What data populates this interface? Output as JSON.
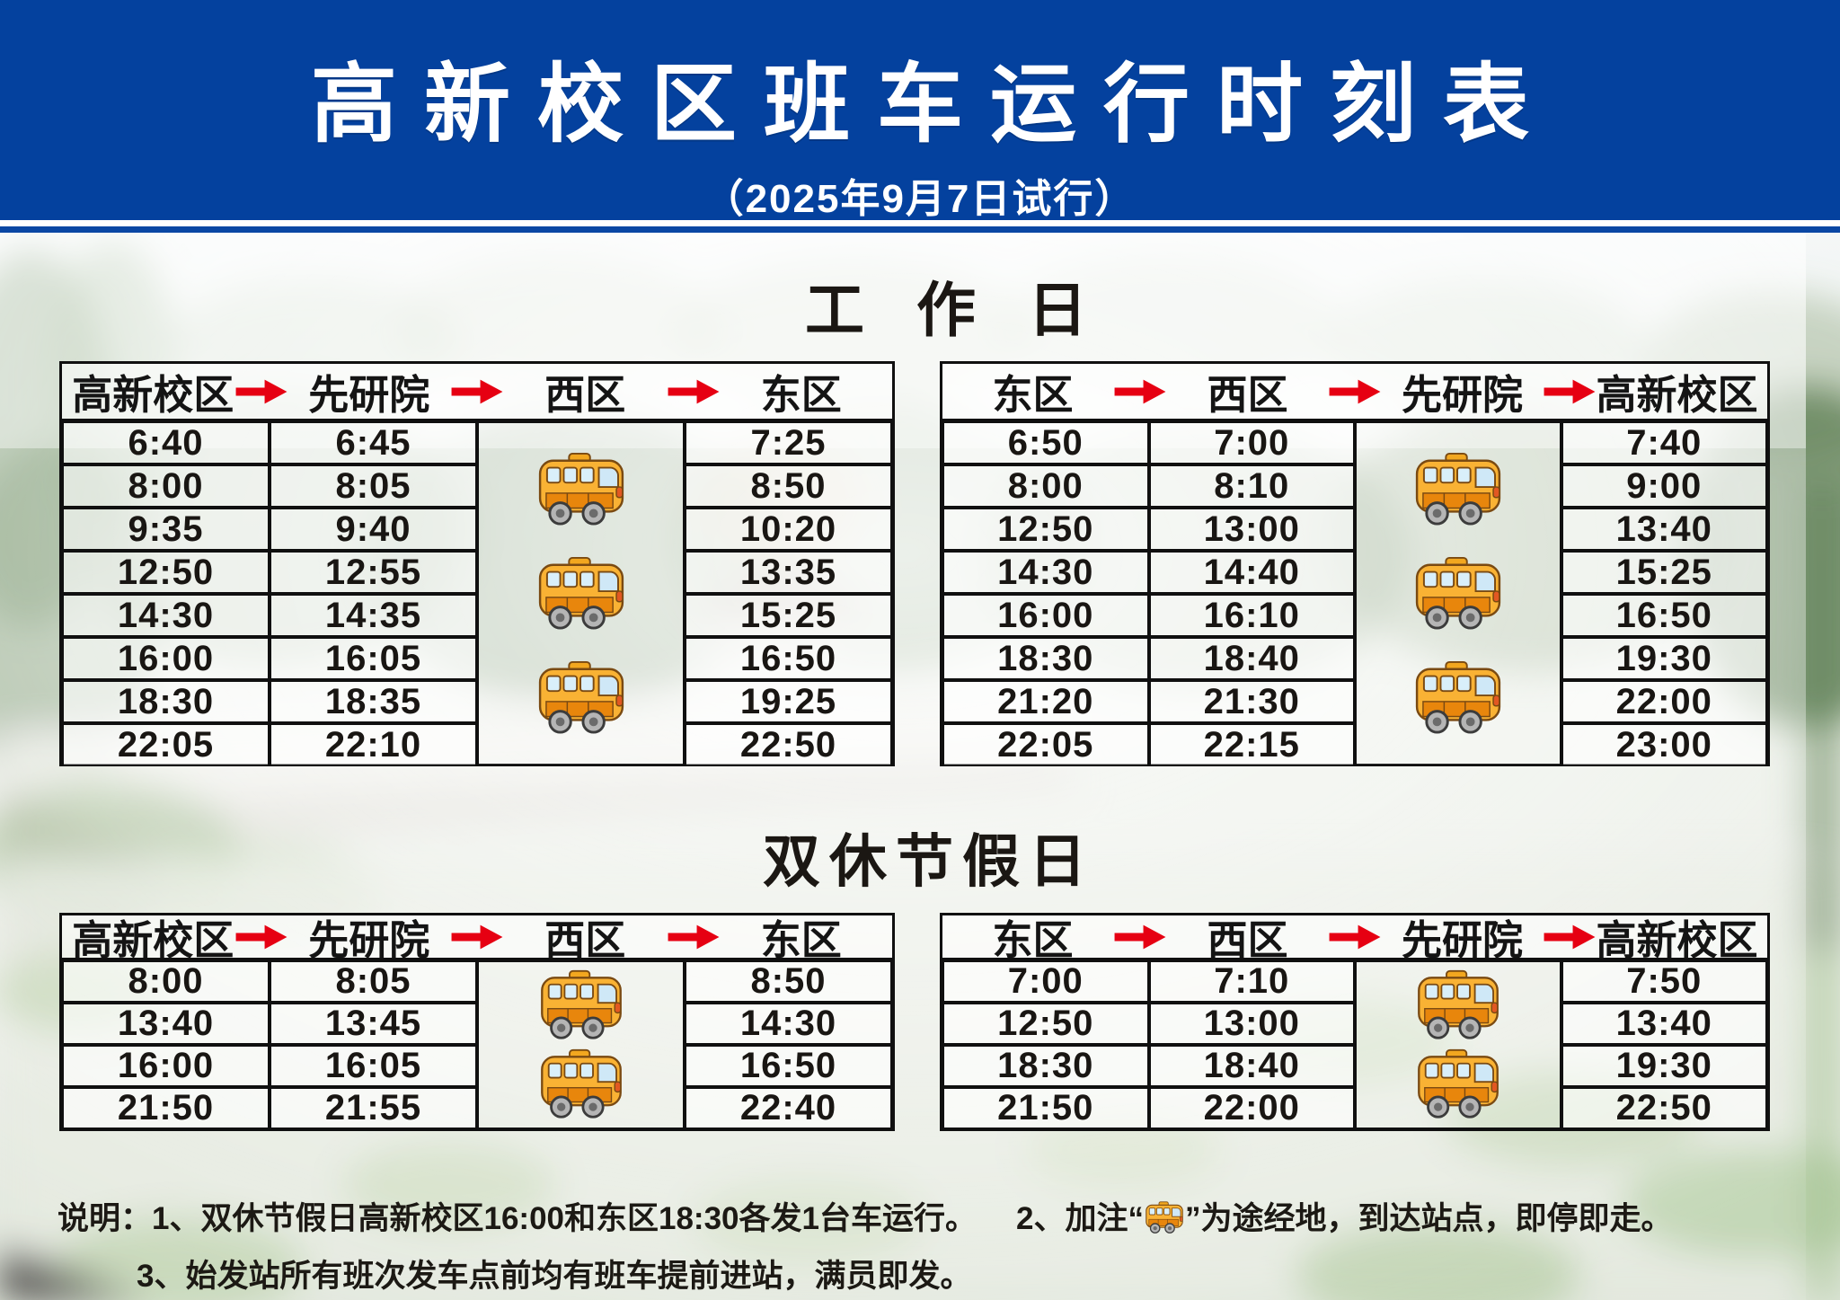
{
  "banner": {
    "title": "高新校区班车运行时刻表",
    "subtitle": "（2025年9月7日试行）"
  },
  "colors": {
    "banner_blue": "#04419e",
    "arrow_red": "#e60012",
    "table_border": "#101010",
    "bus_yellow": "#f9b234"
  },
  "icons": {
    "arrow": "arrow-right-icon",
    "bus": "bus-icon"
  },
  "workday": {
    "title": "工作日",
    "outbound": {
      "stations": [
        "高新校区",
        "先研院",
        "西区",
        "东区"
      ],
      "pass_col": 2,
      "bus_icons": 3,
      "rows": [
        [
          "6:40",
          "6:45",
          "7:25"
        ],
        [
          "8:00",
          "8:05",
          "8:50"
        ],
        [
          "9:35",
          "9:40",
          "10:20"
        ],
        [
          "12:50",
          "12:55",
          "13:35"
        ],
        [
          "14:30",
          "14:35",
          "15:25"
        ],
        [
          "16:00",
          "16:05",
          "16:50"
        ],
        [
          "18:30",
          "18:35",
          "19:25"
        ],
        [
          "22:05",
          "22:10",
          "22:50"
        ]
      ]
    },
    "inbound": {
      "stations": [
        "东区",
        "西区",
        "先研院",
        "高新校区"
      ],
      "pass_col": 2,
      "bus_icons": 3,
      "rows": [
        [
          "6:50",
          "7:00",
          "7:40"
        ],
        [
          "8:00",
          "8:10",
          "9:00"
        ],
        [
          "12:50",
          "13:00",
          "13:40"
        ],
        [
          "14:30",
          "14:40",
          "15:25"
        ],
        [
          "16:00",
          "16:10",
          "16:50"
        ],
        [
          "18:30",
          "18:40",
          "19:30"
        ],
        [
          "21:20",
          "21:30",
          "22:00"
        ],
        [
          "22:05",
          "22:15",
          "23:00"
        ]
      ]
    }
  },
  "weekend": {
    "title": "双休节假日",
    "outbound": {
      "stations": [
        "高新校区",
        "先研院",
        "西区",
        "东区"
      ],
      "pass_col": 2,
      "bus_icons": 2,
      "rows": [
        [
          "8:00",
          "8:05",
          "8:50"
        ],
        [
          "13:40",
          "13:45",
          "14:30"
        ],
        [
          "16:00",
          "16:05",
          "16:50"
        ],
        [
          "21:50",
          "21:55",
          "22:40"
        ]
      ]
    },
    "inbound": {
      "stations": [
        "东区",
        "西区",
        "先研院",
        "高新校区"
      ],
      "pass_col": 2,
      "bus_icons": 2,
      "rows": [
        [
          "7:00",
          "7:10",
          "7:50"
        ],
        [
          "12:50",
          "13:00",
          "13:40"
        ],
        [
          "18:30",
          "18:40",
          "19:30"
        ],
        [
          "21:50",
          "22:00",
          "22:50"
        ]
      ]
    }
  },
  "notes": {
    "intro": "说明：",
    "item1": "1、双休节假日高新校区16:00和东区18:30各发1台车运行。",
    "item2_prefix": "2、加注“",
    "item2_suffix": "”为途经地，到达站点，即停即走。",
    "item3": "3、始发站所有班次发车点前均有班车提前进站，满员即发。"
  }
}
